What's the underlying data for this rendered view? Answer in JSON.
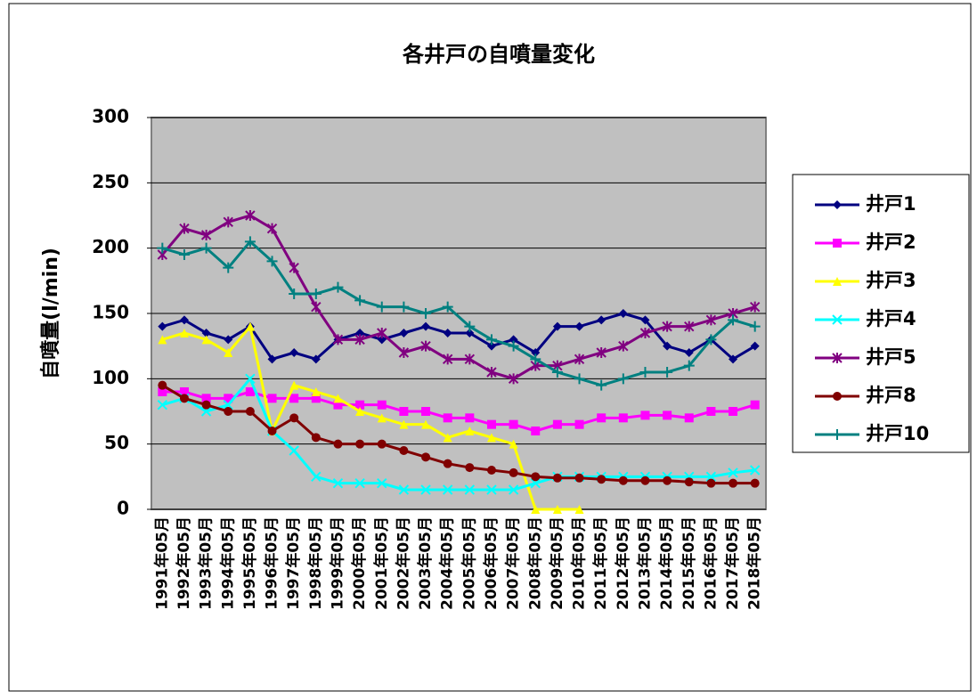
{
  "chart_data": {
    "type": "line",
    "title": "各井戸の自噴量変化",
    "y_label": "自噴量(l/min)",
    "categories": [
      "1991年05月",
      "1992年05月",
      "1993年05月",
      "1994年05月",
      "1995年05月",
      "1996年05月",
      "1997年05月",
      "1998年05月",
      "1999年05月",
      "2000年05月",
      "2001年05月",
      "2002年05月",
      "2003年05月",
      "2004年05月",
      "2005年05月",
      "2006年05月",
      "2007年05月",
      "2008年05月",
      "2009年05月",
      "2010年05月",
      "2011年05月",
      "2012年05月",
      "2013年05月",
      "2014年05月",
      "2015年05月",
      "2016年05月",
      "2017年05月",
      "2018年05月"
    ],
    "ylim": [
      0,
      300
    ],
    "yticks": [
      0,
      50,
      100,
      150,
      200,
      250,
      300
    ],
    "grid": true,
    "legend": "right",
    "series": [
      {
        "name": "井戸1",
        "color": "#000080",
        "marker": "diamond",
        "values": [
          140,
          145,
          135,
          130,
          140,
          115,
          120,
          115,
          130,
          135,
          130,
          135,
          140,
          135,
          135,
          125,
          130,
          120,
          140,
          140,
          145,
          150,
          145,
          125,
          120,
          130,
          115,
          125
        ]
      },
      {
        "name": "井戸2",
        "color": "#ff00ff",
        "marker": "square",
        "values": [
          90,
          90,
          85,
          85,
          90,
          85,
          85,
          85,
          80,
          80,
          80,
          75,
          75,
          70,
          70,
          65,
          65,
          60,
          65,
          65,
          70,
          70,
          72,
          72,
          70,
          75,
          75,
          80
        ]
      },
      {
        "name": "井戸3",
        "color": "#ffff00",
        "marker": "triangle",
        "values": [
          130,
          135,
          130,
          120,
          140,
          60,
          95,
          90,
          85,
          75,
          70,
          65,
          65,
          55,
          60,
          55,
          50,
          0,
          0,
          0,
          null,
          null,
          null,
          null,
          null,
          null,
          null,
          null
        ]
      },
      {
        "name": "井戸4",
        "color": "#00ffff",
        "marker": "x",
        "values": [
          80,
          85,
          75,
          80,
          100,
          60,
          45,
          25,
          20,
          20,
          20,
          15,
          15,
          15,
          15,
          15,
          15,
          20,
          25,
          25,
          25,
          25,
          25,
          25,
          25,
          25,
          28,
          30
        ]
      },
      {
        "name": "井戸5",
        "color": "#800080",
        "marker": "star",
        "values": [
          195,
          215,
          210,
          220,
          225,
          215,
          185,
          155,
          130,
          130,
          135,
          120,
          125,
          115,
          115,
          105,
          100,
          110,
          110,
          115,
          120,
          125,
          135,
          140,
          140,
          145,
          150,
          155
        ]
      },
      {
        "name": "井戸8",
        "color": "#800000",
        "marker": "circle",
        "values": [
          95,
          85,
          80,
          75,
          75,
          60,
          70,
          55,
          50,
          50,
          50,
          45,
          40,
          35,
          32,
          30,
          28,
          25,
          24,
          24,
          23,
          22,
          22,
          22,
          21,
          20,
          20,
          20
        ]
      },
      {
        "name": "井戸10",
        "color": "#008080",
        "marker": "plus",
        "values": [
          200,
          195,
          200,
          185,
          205,
          190,
          165,
          165,
          170,
          160,
          155,
          155,
          150,
          155,
          140,
          130,
          125,
          115,
          105,
          100,
          95,
          100,
          105,
          105,
          110,
          130,
          145,
          140
        ]
      }
    ]
  }
}
